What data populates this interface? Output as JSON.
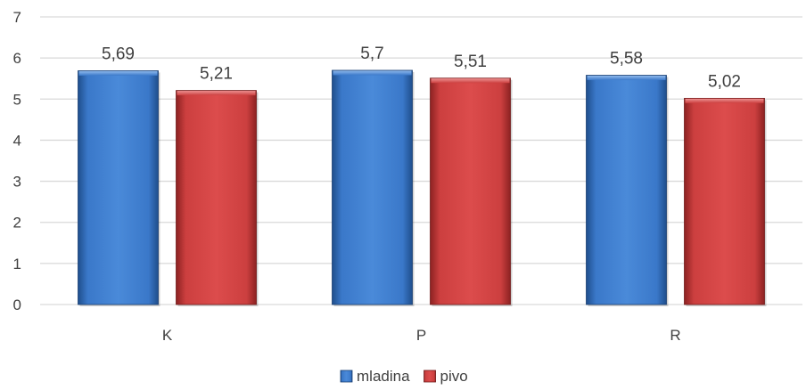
{
  "chart_data": {
    "type": "bar",
    "title": "",
    "xlabel": "",
    "ylabel": "",
    "categories": [
      "K",
      "P",
      "R"
    ],
    "ylim": [
      0,
      7
    ],
    "yticks": [
      "0",
      "1",
      "2",
      "3",
      "4",
      "5",
      "6",
      "7"
    ],
    "grid": true,
    "legend_position": "bottom-center",
    "series": [
      {
        "name": "mladina",
        "color": "#3a78c9",
        "values": [
          5.69,
          5.7,
          5.58
        ],
        "labels": [
          "5,69",
          "5,7",
          "5,58"
        ]
      },
      {
        "name": "pivo",
        "color": "#cc3f3f",
        "values": [
          5.21,
          5.51,
          5.02
        ],
        "labels": [
          "5,21",
          "5,51",
          "5,02"
        ]
      }
    ]
  }
}
